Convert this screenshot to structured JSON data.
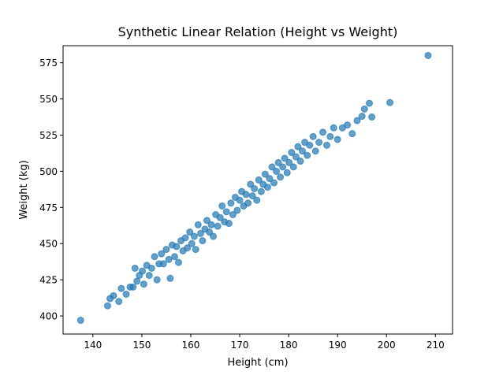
{
  "chart_data": {
    "type": "scatter",
    "title": "Synthetic Linear Relation (Height vs Weight)",
    "xlabel": "Height (cm)",
    "ylabel": "Weight (kg)",
    "xlim": [
      133.9,
      213.5
    ],
    "ylim": [
      387.5,
      586.8
    ],
    "xticks": [
      140,
      150,
      160,
      170,
      180,
      190,
      200,
      210
    ],
    "yticks": [
      400,
      425,
      450,
      475,
      500,
      525,
      550,
      575
    ],
    "grid": false,
    "color": "#1f77b4",
    "alpha": 0.7,
    "points": [
      [
        137.5,
        397
      ],
      [
        143.0,
        407
      ],
      [
        143.5,
        412
      ],
      [
        144.2,
        414
      ],
      [
        145.3,
        410
      ],
      [
        145.8,
        419
      ],
      [
        146.8,
        415
      ],
      [
        147.6,
        420
      ],
      [
        148.2,
        420
      ],
      [
        148.6,
        433
      ],
      [
        149.0,
        424
      ],
      [
        149.5,
        428
      ],
      [
        150.1,
        431
      ],
      [
        150.4,
        422
      ],
      [
        151.0,
        435
      ],
      [
        151.5,
        428
      ],
      [
        152.0,
        433
      ],
      [
        152.6,
        441
      ],
      [
        153.1,
        425
      ],
      [
        153.5,
        436
      ],
      [
        154.0,
        443
      ],
      [
        154.4,
        436
      ],
      [
        155.0,
        446
      ],
      [
        155.5,
        439
      ],
      [
        155.8,
        426
      ],
      [
        156.2,
        449
      ],
      [
        156.7,
        441
      ],
      [
        157.1,
        448
      ],
      [
        157.5,
        437
      ],
      [
        158.0,
        452
      ],
      [
        158.4,
        445
      ],
      [
        158.9,
        454
      ],
      [
        159.3,
        447
      ],
      [
        159.8,
        458
      ],
      [
        160.2,
        450
      ],
      [
        160.7,
        455
      ],
      [
        161.0,
        446
      ],
      [
        161.5,
        463
      ],
      [
        162.0,
        457
      ],
      [
        162.4,
        452
      ],
      [
        162.9,
        460
      ],
      [
        163.3,
        466
      ],
      [
        163.8,
        458
      ],
      [
        164.2,
        463
      ],
      [
        164.6,
        455
      ],
      [
        165.1,
        470
      ],
      [
        165.5,
        462
      ],
      [
        166.0,
        468
      ],
      [
        166.4,
        476
      ],
      [
        166.9,
        465
      ],
      [
        167.3,
        472
      ],
      [
        167.8,
        464
      ],
      [
        168.2,
        478
      ],
      [
        168.6,
        470
      ],
      [
        169.1,
        482
      ],
      [
        169.5,
        473
      ],
      [
        170.0,
        480
      ],
      [
        170.4,
        486
      ],
      [
        170.8,
        476
      ],
      [
        171.3,
        484
      ],
      [
        171.7,
        478
      ],
      [
        172.2,
        491
      ],
      [
        172.6,
        483
      ],
      [
        173.0,
        488
      ],
      [
        173.5,
        480
      ],
      [
        173.9,
        494
      ],
      [
        174.4,
        486
      ],
      [
        174.8,
        491
      ],
      [
        175.2,
        498
      ],
      [
        175.7,
        489
      ],
      [
        176.1,
        495
      ],
      [
        176.6,
        503
      ],
      [
        177.0,
        492
      ],
      [
        177.5,
        500
      ],
      [
        177.9,
        506
      ],
      [
        178.3,
        496
      ],
      [
        178.8,
        503
      ],
      [
        179.2,
        509
      ],
      [
        179.7,
        499
      ],
      [
        180.1,
        506
      ],
      [
        180.6,
        513
      ],
      [
        181.0,
        503
      ],
      [
        181.5,
        510
      ],
      [
        181.9,
        517
      ],
      [
        182.4,
        507
      ],
      [
        182.8,
        514
      ],
      [
        183.3,
        520
      ],
      [
        183.8,
        511
      ],
      [
        184.3,
        518
      ],
      [
        185.0,
        524
      ],
      [
        185.5,
        514
      ],
      [
        186.2,
        520
      ],
      [
        187.0,
        527
      ],
      [
        187.8,
        518
      ],
      [
        188.5,
        524
      ],
      [
        189.2,
        530
      ],
      [
        190.0,
        522
      ],
      [
        191.0,
        530
      ],
      [
        192.0,
        532
      ],
      [
        193.0,
        526
      ],
      [
        194.0,
        535
      ],
      [
        195.0,
        538
      ],
      [
        195.5,
        543
      ],
      [
        196.5,
        547
      ],
      [
        197.0,
        537.5
      ],
      [
        200.7,
        547.5
      ],
      [
        208.5,
        580
      ]
    ]
  }
}
